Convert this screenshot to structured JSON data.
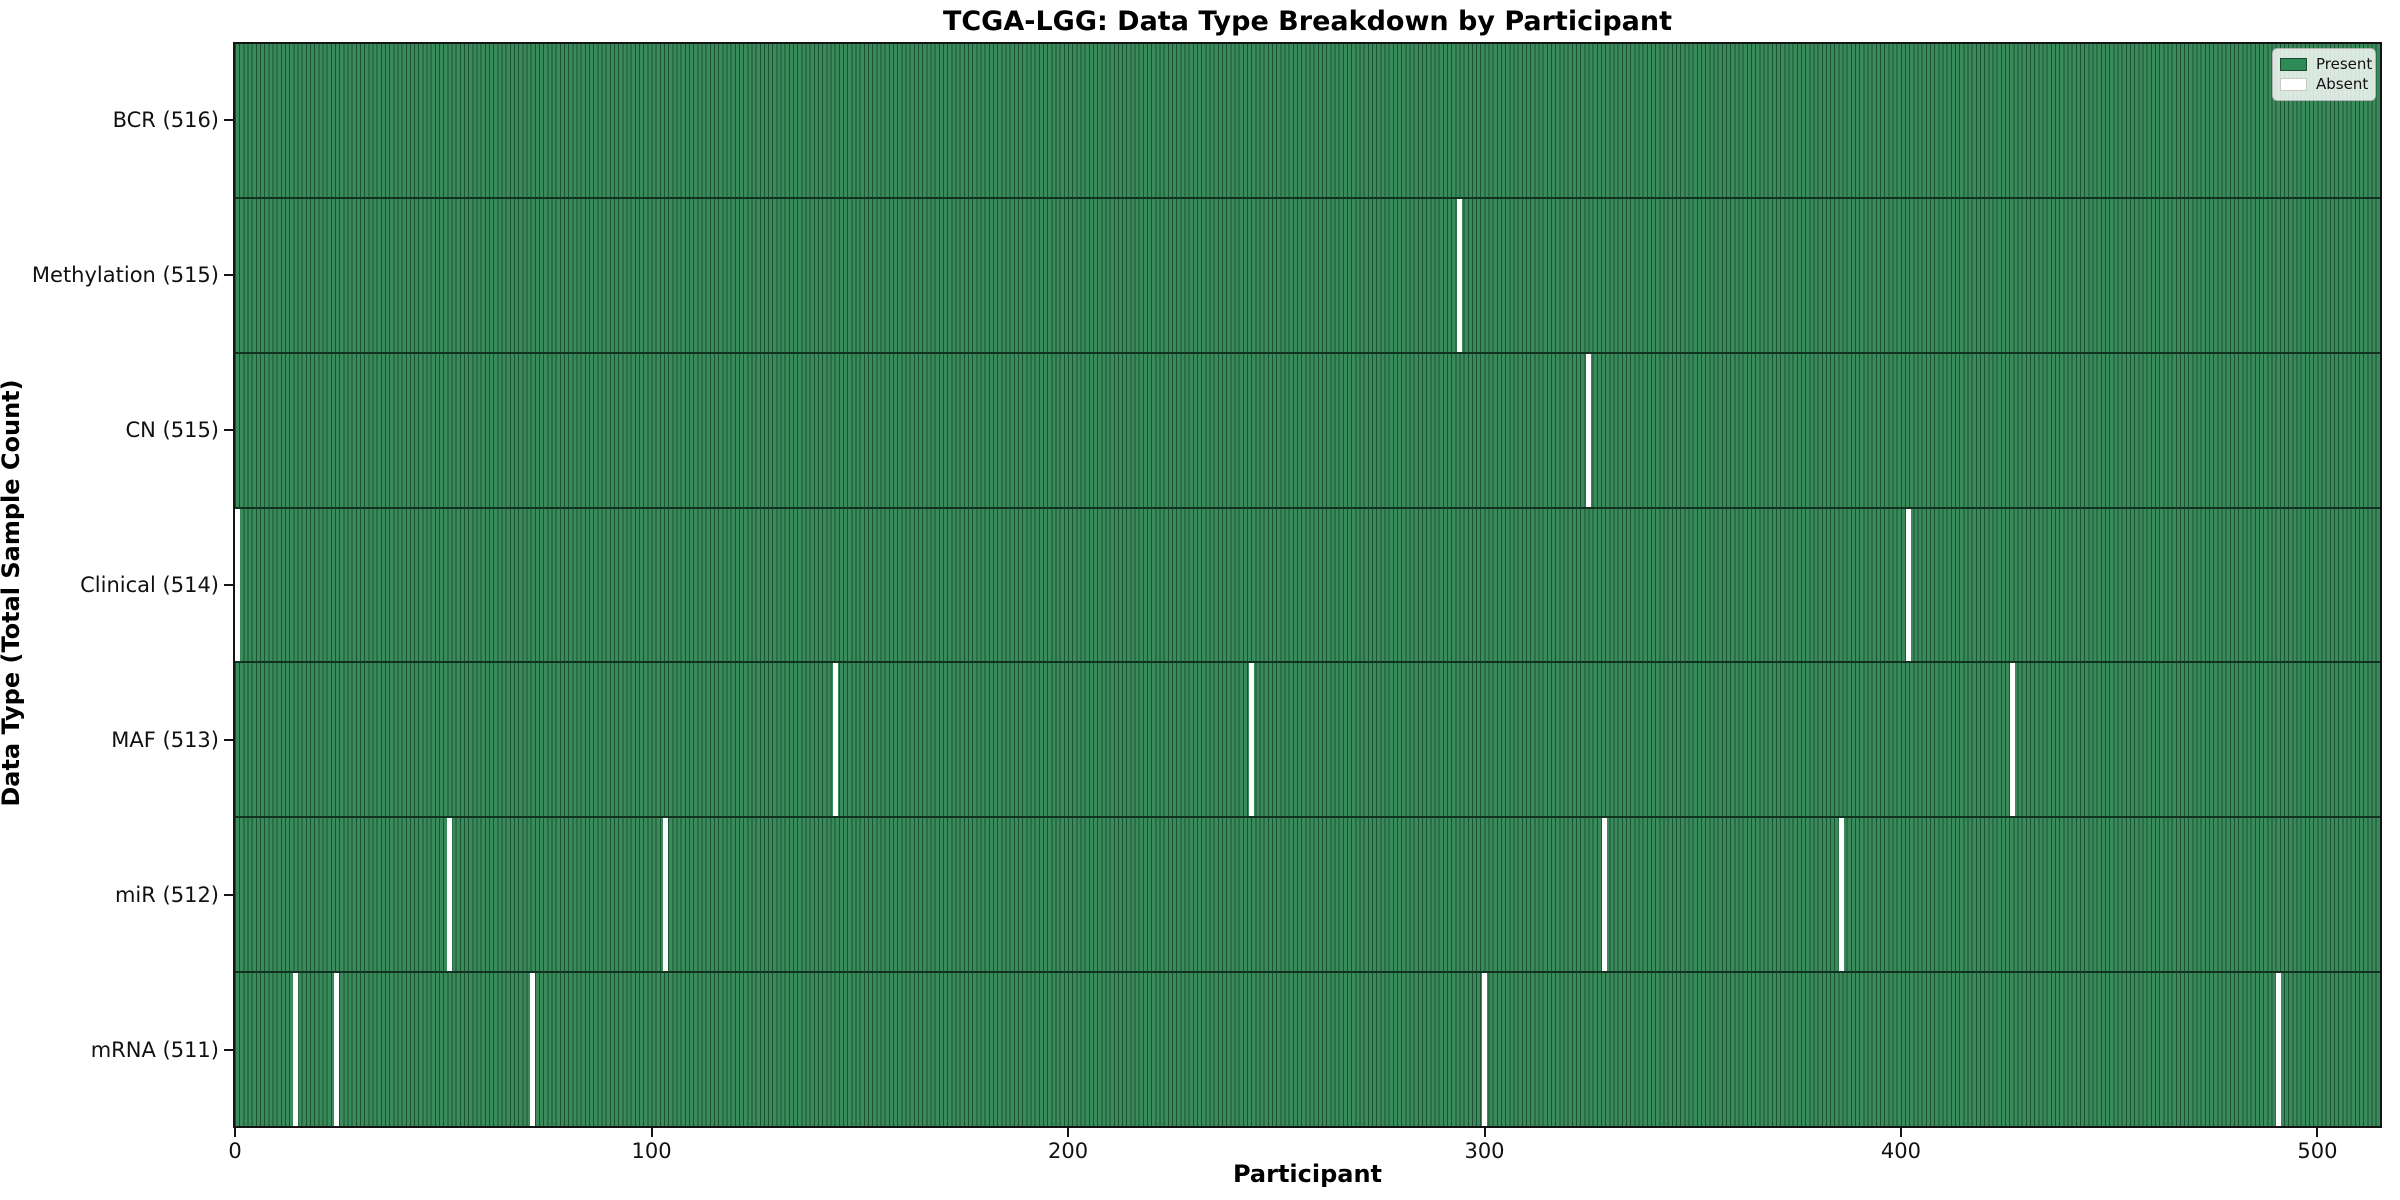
{
  "title": "TCGA-LGG: Data Type Breakdown by Participant",
  "xlabel": "Participant",
  "ylabel": "Data Type (Total Sample Count)",
  "legend": {
    "present_label": "Present",
    "absent_label": "Absent",
    "position": "upper right"
  },
  "colors": {
    "present_fill": "#3a8b5c",
    "present_swatch": "#2e8b57",
    "cell_edge": "#1c5233",
    "absent": "#ffffff",
    "row_border": "#10321e",
    "axis": "#141414",
    "background": "#ffffff"
  },
  "chart_data": {
    "type": "heatmap",
    "title": "TCGA-LGG: Data Type Breakdown by Participant",
    "xlabel": "Participant",
    "ylabel": "Data Type (Total Sample Count)",
    "legend": [
      "Present",
      "Absent"
    ],
    "legend_position": "upper right",
    "grid": false,
    "n_participants": 516,
    "x_ticks": [
      0,
      100,
      200,
      300,
      400,
      500
    ],
    "x_range": [
      0,
      515
    ],
    "value_encoding": {
      "present": "green cell",
      "absent": "white cell"
    },
    "rows": [
      {
        "data_type": "BCR",
        "label": "BCR (516)",
        "total_samples": 516,
        "absent_participants": []
      },
      {
        "data_type": "Methylation",
        "label": "Methylation (515)",
        "total_samples": 515,
        "absent_participants": [
          294
        ]
      },
      {
        "data_type": "CN",
        "label": "CN (515)",
        "total_samples": 515,
        "absent_participants": [
          325
        ]
      },
      {
        "data_type": "Clinical",
        "label": "Clinical (514)",
        "total_samples": 514,
        "absent_participants": [
          0,
          402
        ]
      },
      {
        "data_type": "MAF",
        "label": "MAF (513)",
        "total_samples": 513,
        "absent_participants": [
          144,
          244,
          427
        ]
      },
      {
        "data_type": "miR",
        "label": "miR (512)",
        "total_samples": 512,
        "absent_participants": [
          51,
          103,
          329,
          386
        ]
      },
      {
        "data_type": "mRNA",
        "label": "mRNA (511)",
        "total_samples": 511,
        "absent_participants": [
          14,
          24,
          71,
          300,
          491
        ]
      }
    ]
  }
}
